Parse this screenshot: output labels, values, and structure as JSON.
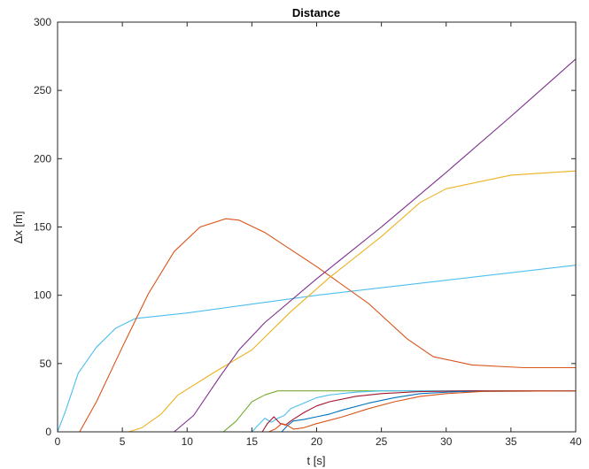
{
  "chart_data": {
    "type": "line",
    "title": "Distance",
    "xlabel": "t [s]",
    "ylabel": "Δx [m]",
    "xlim": [
      0,
      40
    ],
    "ylim": [
      0,
      300
    ],
    "xticks": [
      "0",
      "5",
      "10",
      "15",
      "20",
      "25",
      "30",
      "35",
      "40"
    ],
    "yticks": [
      "0",
      "50",
      "100",
      "150",
      "200",
      "250",
      "300"
    ],
    "grid": false,
    "legend": "none",
    "series": [
      {
        "color": "#4DBEEE",
        "points": [
          [
            0,
            0
          ],
          [
            0.6,
            15
          ],
          [
            1.6,
            43
          ],
          [
            3,
            62
          ],
          [
            4.5,
            76
          ],
          [
            6,
            83
          ],
          [
            10,
            87
          ],
          [
            20,
            100
          ],
          [
            30,
            111
          ],
          [
            40,
            122
          ]
        ]
      },
      {
        "color": "#D95319",
        "points": [
          [
            0,
            0
          ],
          [
            1.7,
            0
          ],
          [
            3,
            22
          ],
          [
            5,
            62
          ],
          [
            7,
            101
          ],
          [
            9,
            132
          ],
          [
            11,
            150
          ],
          [
            13,
            156
          ],
          [
            14,
            155
          ],
          [
            16,
            146
          ],
          [
            20,
            121
          ],
          [
            24,
            94
          ],
          [
            27,
            68
          ],
          [
            29,
            55
          ],
          [
            32,
            49
          ],
          [
            36,
            47
          ],
          [
            40,
            47
          ]
        ]
      },
      {
        "color": "#EDB120",
        "points": [
          [
            0,
            0
          ],
          [
            5.5,
            0
          ],
          [
            6.5,
            3
          ],
          [
            8,
            13
          ],
          [
            9.3,
            27
          ],
          [
            12,
            43
          ],
          [
            15,
            60
          ],
          [
            18,
            88
          ],
          [
            21,
            113
          ],
          [
            25,
            143
          ],
          [
            28,
            168
          ],
          [
            30,
            178
          ],
          [
            35,
            188
          ],
          [
            40,
            191
          ]
        ]
      },
      {
        "color": "#7E2F8E",
        "points": [
          [
            0,
            0
          ],
          [
            9,
            0
          ],
          [
            10.5,
            12
          ],
          [
            12.5,
            40
          ],
          [
            14,
            60
          ],
          [
            16,
            80
          ],
          [
            20,
            112
          ],
          [
            25,
            150
          ],
          [
            30,
            190
          ],
          [
            35,
            231
          ],
          [
            40,
            273
          ]
        ]
      },
      {
        "color": "#77AC30",
        "points": [
          [
            0,
            0
          ],
          [
            12.8,
            0
          ],
          [
            13.8,
            8
          ],
          [
            15,
            22
          ],
          [
            16,
            27
          ],
          [
            17,
            30
          ],
          [
            40,
            30
          ]
        ]
      },
      {
        "color": "#4DBEEE",
        "points": [
          [
            15,
            0
          ],
          [
            15.6,
            6
          ],
          [
            16,
            10
          ],
          [
            16.5,
            7
          ],
          [
            17,
            10
          ],
          [
            17.5,
            12
          ],
          [
            18,
            17
          ],
          [
            19,
            21
          ],
          [
            20,
            25
          ],
          [
            21,
            27
          ],
          [
            23,
            29
          ],
          [
            25,
            30
          ],
          [
            40,
            30
          ]
        ]
      },
      {
        "color": "#A2142F",
        "points": [
          [
            15.8,
            0
          ],
          [
            16.2,
            6
          ],
          [
            16.7,
            11
          ],
          [
            17.2,
            6
          ],
          [
            17.6,
            5
          ],
          [
            18,
            8
          ],
          [
            19,
            14
          ],
          [
            20,
            19
          ],
          [
            21,
            22
          ],
          [
            23,
            26
          ],
          [
            25,
            28
          ],
          [
            28,
            29.5
          ],
          [
            32,
            30
          ],
          [
            40,
            30
          ]
        ]
      },
      {
        "color": "#0072BD",
        "points": [
          [
            17.3,
            0
          ],
          [
            17.8,
            5
          ],
          [
            18.2,
            8
          ],
          [
            19,
            9
          ],
          [
            20,
            11
          ],
          [
            21,
            13
          ],
          [
            22,
            16
          ],
          [
            24,
            21
          ],
          [
            26,
            25
          ],
          [
            28,
            28
          ],
          [
            31,
            29.5
          ],
          [
            40,
            30
          ]
        ]
      },
      {
        "color": "#D95319",
        "points": [
          [
            16.3,
            0
          ],
          [
            16.8,
            2
          ],
          [
            17.3,
            6
          ],
          [
            17.7,
            5
          ],
          [
            18.2,
            2
          ],
          [
            19,
            3
          ],
          [
            20,
            6
          ],
          [
            22,
            11
          ],
          [
            24,
            17
          ],
          [
            26,
            22
          ],
          [
            28,
            26
          ],
          [
            30,
            28
          ],
          [
            33,
            29.7
          ],
          [
            40,
            30
          ]
        ]
      }
    ]
  }
}
